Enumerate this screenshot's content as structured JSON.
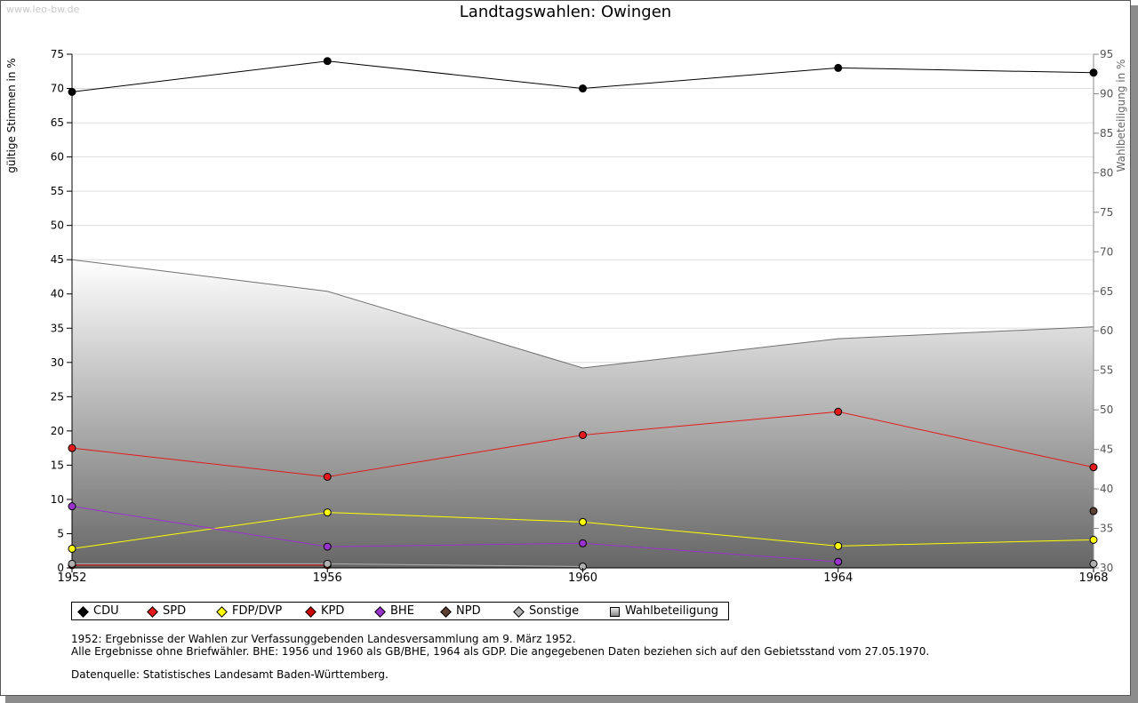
{
  "watermark": "www.leo-bw.de",
  "colors": {
    "CDU": "#000000",
    "SPD": "#e41a1c",
    "FDP/DVP": "#ffff00",
    "KPD": "#cc0000",
    "BHE": "#9933cc",
    "NPD": "#5c4033",
    "Sonstige": "#b0b0b0",
    "Wahlbeteiligung": "#808080"
  },
  "chart_data": {
    "type": "line",
    "title": "Landtagswahlen: Owingen",
    "xlabel": "",
    "ylabel": "gültige Stimmen in %",
    "ylabel_right": "Wahlbeteiligung in %",
    "categories": [
      "1952",
      "1956",
      "1960",
      "1964",
      "1968"
    ],
    "ylim": [
      0,
      75
    ],
    "y_ticks": [
      0,
      5,
      10,
      15,
      20,
      25,
      30,
      35,
      40,
      45,
      50,
      55,
      60,
      65,
      70,
      75
    ],
    "ylim_right": [
      30,
      95
    ],
    "y_ticks_right": [
      30,
      35,
      40,
      45,
      50,
      55,
      60,
      65,
      70,
      75,
      80,
      85,
      90,
      95
    ],
    "grid": true,
    "legend_position": "bottom-left",
    "series": [
      {
        "name": "CDU",
        "axis": "left",
        "values": [
          69.5,
          74.0,
          70.0,
          73.0,
          72.3
        ]
      },
      {
        "name": "SPD",
        "axis": "left",
        "values": [
          17.5,
          13.3,
          19.4,
          22.8,
          14.7
        ]
      },
      {
        "name": "FDP/DVP",
        "axis": "left",
        "values": [
          2.8,
          8.1,
          6.7,
          3.2,
          4.1
        ]
      },
      {
        "name": "KPD",
        "axis": "left",
        "values": [
          0.4,
          0.4,
          null,
          null,
          null
        ]
      },
      {
        "name": "BHE",
        "axis": "left",
        "values": [
          9.0,
          3.1,
          3.6,
          0.9,
          null
        ]
      },
      {
        "name": "NPD",
        "axis": "left",
        "values": [
          null,
          null,
          null,
          null,
          8.3
        ]
      },
      {
        "name": "Sonstige",
        "axis": "left",
        "values": [
          0.6,
          0.6,
          0.2,
          null,
          0.6
        ]
      },
      {
        "name": "Wahlbeteiligung",
        "axis": "right",
        "type": "area",
        "values": [
          69.0,
          65.0,
          55.3,
          59.0,
          60.5
        ]
      }
    ]
  },
  "legend": [
    "CDU",
    "SPD",
    "FDP/DVP",
    "KPD",
    "BHE",
    "NPD",
    "Sonstige",
    "Wahlbeteiligung"
  ],
  "notes": {
    "line1": "1952: Ergebnisse der Wahlen zur Verfassunggebenden Landesversammlung am 9. März 1952.",
    "line2": "Alle Ergebnisse ohne Briefwähler. BHE: 1956 und 1960 als GB/BHE, 1964 als GDP. Die angegebenen Daten beziehen sich auf den Gebietsstand vom 27.05.1970.",
    "source": "Datenquelle: Statistisches Landesamt Baden-Württemberg."
  }
}
